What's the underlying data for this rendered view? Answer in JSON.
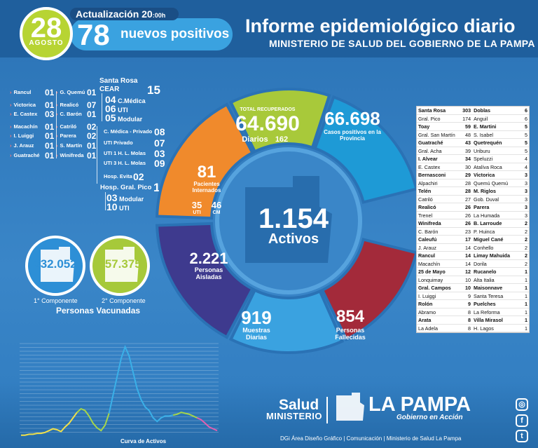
{
  "header": {
    "day": "28",
    "month": "AGOSTO",
    "update_label": "Actualización 20",
    "update_time_suffix": ":00h",
    "new_positives": "78",
    "new_positives_label": "nuevos positivos",
    "title": "Informe epidemiológico diario",
    "subtitle": "MINISTERIO DE SALUD DEL GOBIERNO DE LA PAMPA"
  },
  "localities_left": [
    {
      "name": "Rancul",
      "value": "01"
    },
    {
      "name": "Victorica",
      "value": "01"
    },
    {
      "name": "E. Castex",
      "value": "03"
    },
    {
      "name": "Macachín",
      "value": "01"
    },
    {
      "name": "I. Luiggi",
      "value": "01"
    },
    {
      "name": "J. Arauz",
      "value": "01"
    },
    {
      "name": "Guatraché",
      "value": "01"
    }
  ],
  "localities_mid": [
    {
      "name": "G. Quemú",
      "value": "01"
    },
    {
      "name": "Realicó",
      "value": "07"
    },
    {
      "name": "C. Barón",
      "value": "01"
    },
    {
      "name": "Catriló",
      "value": "02"
    },
    {
      "name": "Parera",
      "value": "02"
    },
    {
      "name": "S. Martín",
      "value": "01"
    },
    {
      "name": "Winifreda",
      "value": "01"
    }
  ],
  "santa_rosa": {
    "title": "Santa Rosa",
    "cear": "CEAR",
    "cear_total": "15",
    "cear_items": [
      {
        "value": "04",
        "name": "C.Médica"
      },
      {
        "value": "06",
        "name": "UTI"
      },
      {
        "value": "05",
        "name": "Modular"
      }
    ],
    "others": [
      {
        "name": "C. Médica - Privado",
        "value": "08"
      },
      {
        "name": "UTI Privado",
        "value": "07"
      },
      {
        "name": "UTI 1 H. L. Molas",
        "value": "03"
      },
      {
        "name": "UTI 3 H. L. Molas",
        "value": "09"
      },
      {
        "name": "Hosp. Evita",
        "value": "02"
      }
    ]
  },
  "hosp_pico": {
    "name": "Hosp. Gral. Pico",
    "total": "13",
    "items": [
      {
        "value": "03",
        "name": "Modular"
      },
      {
        "value": "10",
        "name": "UTI"
      }
    ]
  },
  "vaccines": {
    "first": {
      "value": "232.052",
      "label": "1° Componente"
    },
    "second": {
      "value": "157.375",
      "label": "2° Componente"
    },
    "title": "Personas Vacunadas"
  },
  "ring": {
    "recovered_label": "TOTAL RECUPERADOS",
    "recovered": "64.690",
    "daily_label": "Diarios",
    "daily": "162",
    "positive_cases": "66.698",
    "positive_cases_label": "Casos positivos en la Provincia",
    "hospitalized": "81",
    "hospitalized_label": "Pacientes Internados",
    "uti": "35",
    "uti_label": "UTI",
    "cm": "46",
    "cm_label": "CM",
    "active": "1.154",
    "active_label": "Activos",
    "isolated": "2.221",
    "isolated_label": "Personas Aisladas",
    "samples": "919",
    "samples_label": "Muestras Diarias",
    "deceased": "854",
    "deceased_label": "Personas Fallecidas"
  },
  "colors": {
    "recovered": "#a8c93a",
    "positive": "#1e9ad6",
    "hospitalized": "#f08a2c",
    "isolated": "#3e3a8e",
    "samples": "#3aa2e0",
    "deceased": "#a32a3a",
    "center": "#2f7bbf",
    "vaccine1": "#2d8fd6",
    "vaccine2": "#a6c93a"
  },
  "table": {
    "rows": [
      [
        "Santa Rosa",
        "303",
        "Doblas",
        "6"
      ],
      [
        "Gral. Pico",
        "174",
        "Anguil",
        "6"
      ],
      [
        "Toay",
        "59",
        "E. Martini",
        "5"
      ],
      [
        "Gral. San Martín",
        "48",
        "S. Isabel",
        "5"
      ],
      [
        "Guatraché",
        "43",
        "Quetrequén",
        "5"
      ],
      [
        "Gral. Acha",
        "39",
        "Uriburu",
        "5"
      ],
      [
        "I. Alvear",
        "34",
        "Speluzzi",
        "4"
      ],
      [
        "E. Castex",
        "30",
        "Atalíva Roca",
        "4"
      ],
      [
        "Bernasconi",
        "29",
        "Victorica",
        "3"
      ],
      [
        "Alpachiri",
        "28",
        "Quemú Quemú",
        "3"
      ],
      [
        "Telén",
        "28",
        "M. Riglos",
        "3"
      ],
      [
        "Catriló",
        "27",
        "Gob. Duval",
        "3"
      ],
      [
        "Realicó",
        "26",
        "Parera",
        "3"
      ],
      [
        "Trenel",
        "26",
        "La Humada",
        "3"
      ],
      [
        "Winifreda",
        "26",
        "B. Larroude",
        "2"
      ],
      [
        "C. Barón",
        "23",
        "P. Huinca",
        "2"
      ],
      [
        "Caleufú",
        "17",
        "Miguel Cané",
        "2"
      ],
      [
        "J. Arauz",
        "14",
        "Conhello",
        "2"
      ],
      [
        "Rancul",
        "14",
        "Limay Mahuida",
        "2"
      ],
      [
        "Macachín",
        "14",
        "Dorila",
        "2"
      ],
      [
        "25 de Mayo",
        "12",
        "Rucanelo",
        "1"
      ],
      [
        "Lonquimay",
        "10",
        "Alta Italia",
        "1"
      ],
      [
        "Gral. Campos",
        "10",
        "Maisonnave",
        "1"
      ],
      [
        "I. Luiggi",
        "9",
        "Santa Teresa",
        "1"
      ],
      [
        "Rolón",
        "9",
        "Puelches",
        "1"
      ],
      [
        "Abramo",
        "8",
        "La Reforma",
        "1"
      ],
      [
        "Arata",
        "8",
        "Villa Mirasol",
        "1"
      ],
      [
        "La Adela",
        "8",
        "H. Lagos",
        "1"
      ]
    ]
  },
  "chart_data": {
    "type": "line",
    "title": "Curva de Activos",
    "series": [
      {
        "values": [
          1,
          1,
          2,
          2,
          3,
          3,
          4,
          6,
          8,
          7,
          5,
          10,
          14,
          20,
          26,
          30,
          28,
          22,
          14,
          9,
          6,
          12,
          25,
          45,
          65,
          85,
          98,
          88,
          70,
          52,
          40,
          32,
          28,
          20,
          16,
          20,
          22,
          22,
          23,
          24,
          26,
          25,
          24,
          22,
          20,
          18,
          14,
          10,
          8,
          6
        ]
      }
    ],
    "ylim": [
      0,
      100
    ],
    "colors": [
      "#f0e04a",
      "#a6d64a",
      "#3ab0e8",
      "#e060b0"
    ]
  },
  "footer": {
    "salud": "Salud",
    "ministerio": "MINISTERIO",
    "la_pampa": "LA PAMPA",
    "gobierno": "Gobierno en Acción",
    "credits": "DGi Área Diseño Gráfico  | Comunicación | Ministerio de Salud La Pampa"
  },
  "social": {
    "instagram": "◎",
    "facebook": "f",
    "twitter": "t"
  }
}
